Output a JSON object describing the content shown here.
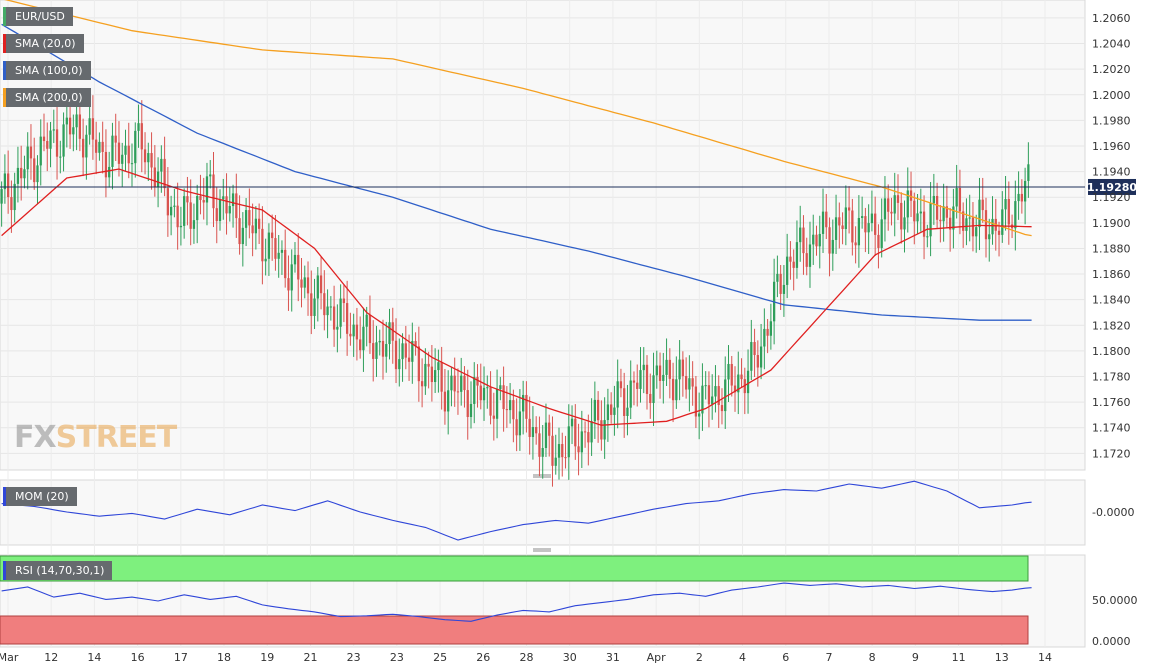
{
  "symbol": "EUR/USD",
  "indicators": {
    "sma20": {
      "label": "SMA (20,0)",
      "color": "#e02020"
    },
    "sma100": {
      "label": "SMA (100,0)",
      "color": "#2f5fc8"
    },
    "sma200": {
      "label": "SMA (200,0)",
      "color": "#f5a020"
    },
    "mom": {
      "label": "MOM (20)",
      "color": "#2f46d8",
      "value_label": "-0.0000"
    },
    "rsi": {
      "label": "RSI (14,70,30,1)",
      "color": "#2f46d8",
      "levels": [
        "50.0000",
        "0.0000"
      ]
    }
  },
  "last_price": "1.19280",
  "brand": {
    "fx": "FX",
    "street": "STREET"
  },
  "chart_data": {
    "type": "candlestick",
    "yaxis": {
      "labels": [
        "1.2060",
        "1.2040",
        "1.2020",
        "1.2000",
        "1.1980",
        "1.1960",
        "1.1940",
        "1.1920",
        "1.1900",
        "1.1880",
        "1.1860",
        "1.1840",
        "1.1820",
        "1.1800",
        "1.1780",
        "1.1760",
        "1.1740",
        "1.1720"
      ]
    },
    "xaxis": {
      "labels": [
        "Mar",
        "12",
        "14",
        "16",
        "17",
        "18",
        "19",
        "21",
        "23",
        "23",
        "25",
        "26",
        "28",
        "30",
        "31",
        "Apr",
        "2",
        "4",
        "6",
        "7",
        "8",
        "9",
        "11",
        "13",
        "14"
      ]
    },
    "ylim": [
      1.1707,
      1.2074
    ],
    "current_price": 1.1928,
    "price_path": [
      [
        0,
        1.1915
      ],
      [
        6,
        1.1935
      ],
      [
        14,
        1.196
      ],
      [
        24,
        1.1975
      ],
      [
        34,
        1.195
      ],
      [
        44,
        1.1962
      ],
      [
        50,
        1.193
      ],
      [
        56,
        1.19
      ],
      [
        64,
        1.1925
      ],
      [
        80,
        1.189
      ],
      [
        96,
        1.1845
      ],
      [
        112,
        1.181
      ],
      [
        124,
        1.18
      ],
      [
        138,
        1.177
      ],
      [
        150,
        1.1765
      ],
      [
        160,
        1.175
      ],
      [
        170,
        1.172
      ],
      [
        182,
        1.174
      ],
      [
        196,
        1.1775
      ],
      [
        208,
        1.1782
      ],
      [
        216,
        1.176
      ],
      [
        226,
        1.1775
      ],
      [
        232,
        1.179
      ],
      [
        242,
        1.187
      ],
      [
        252,
        1.189
      ],
      [
        260,
        1.19
      ],
      [
        268,
        1.1895
      ],
      [
        276,
        1.1915
      ],
      [
        284,
        1.1902
      ],
      [
        292,
        1.191
      ],
      [
        300,
        1.19
      ],
      [
        308,
        1.1898
      ],
      [
        315,
        1.1928
      ]
    ],
    "sma20_path": [
      [
        0,
        1.189
      ],
      [
        20,
        1.1935
      ],
      [
        36,
        1.1942
      ],
      [
        56,
        1.1925
      ],
      [
        80,
        1.191
      ],
      [
        96,
        1.188
      ],
      [
        112,
        1.183
      ],
      [
        132,
        1.1795
      ],
      [
        150,
        1.1772
      ],
      [
        168,
        1.1755
      ],
      [
        184,
        1.1742
      ],
      [
        204,
        1.1745
      ],
      [
        216,
        1.1755
      ],
      [
        236,
        1.1785
      ],
      [
        252,
        1.183
      ],
      [
        268,
        1.1875
      ],
      [
        284,
        1.1895
      ],
      [
        300,
        1.1898
      ],
      [
        315,
        1.1897
      ]
    ],
    "sma100_path": [
      [
        0,
        1.2055
      ],
      [
        30,
        1.201
      ],
      [
        60,
        1.197
      ],
      [
        90,
        1.194
      ],
      [
        120,
        1.192
      ],
      [
        150,
        1.1895
      ],
      [
        180,
        1.1878
      ],
      [
        210,
        1.1858
      ],
      [
        240,
        1.1836
      ],
      [
        270,
        1.1828
      ],
      [
        300,
        1.1824
      ],
      [
        315,
        1.1824
      ]
    ],
    "sma200_path": [
      [
        0,
        1.2075
      ],
      [
        40,
        1.205
      ],
      [
        80,
        1.2035
      ],
      [
        120,
        1.2028
      ],
      [
        160,
        1.2005
      ],
      [
        200,
        1.1978
      ],
      [
        240,
        1.1948
      ],
      [
        270,
        1.1928
      ],
      [
        300,
        1.1903
      ],
      [
        315,
        1.189
      ]
    ],
    "mom_path": [
      [
        0,
        0.6
      ],
      [
        10,
        0.4
      ],
      [
        20,
        0.0
      ],
      [
        30,
        -0.3
      ],
      [
        40,
        -0.1
      ],
      [
        50,
        -0.5
      ],
      [
        60,
        0.2
      ],
      [
        70,
        -0.2
      ],
      [
        80,
        0.5
      ],
      [
        90,
        0.1
      ],
      [
        100,
        0.8
      ],
      [
        110,
        0.0
      ],
      [
        120,
        -0.6
      ],
      [
        130,
        -1.1
      ],
      [
        140,
        -2.0
      ],
      [
        150,
        -1.4
      ],
      [
        160,
        -0.9
      ],
      [
        170,
        -0.6
      ],
      [
        180,
        -0.8
      ],
      [
        190,
        -0.3
      ],
      [
        200,
        0.2
      ],
      [
        210,
        0.6
      ],
      [
        220,
        0.8
      ],
      [
        230,
        1.3
      ],
      [
        240,
        1.6
      ],
      [
        250,
        1.5
      ],
      [
        260,
        2.0
      ],
      [
        270,
        1.7
      ],
      [
        280,
        2.2
      ],
      [
        290,
        1.5
      ],
      [
        300,
        0.3
      ],
      [
        310,
        0.5
      ],
      [
        315,
        0.7
      ]
    ],
    "rsi_path": [
      [
        0,
        63
      ],
      [
        8,
        68
      ],
      [
        16,
        55
      ],
      [
        24,
        60
      ],
      [
        32,
        52
      ],
      [
        40,
        55
      ],
      [
        48,
        50
      ],
      [
        56,
        58
      ],
      [
        64,
        52
      ],
      [
        72,
        56
      ],
      [
        80,
        45
      ],
      [
        88,
        40
      ],
      [
        96,
        36
      ],
      [
        104,
        30
      ],
      [
        112,
        31
      ],
      [
        120,
        33
      ],
      [
        128,
        30
      ],
      [
        136,
        26
      ],
      [
        144,
        24
      ],
      [
        152,
        32
      ],
      [
        160,
        38
      ],
      [
        168,
        36
      ],
      [
        176,
        44
      ],
      [
        184,
        48
      ],
      [
        192,
        52
      ],
      [
        200,
        58
      ],
      [
        208,
        60
      ],
      [
        216,
        56
      ],
      [
        224,
        64
      ],
      [
        232,
        68
      ],
      [
        240,
        73
      ],
      [
        248,
        70
      ],
      [
        256,
        72
      ],
      [
        264,
        68
      ],
      [
        272,
        70
      ],
      [
        280,
        66
      ],
      [
        288,
        69
      ],
      [
        296,
        65
      ],
      [
        304,
        62
      ],
      [
        310,
        64
      ],
      [
        315,
        67
      ]
    ]
  }
}
